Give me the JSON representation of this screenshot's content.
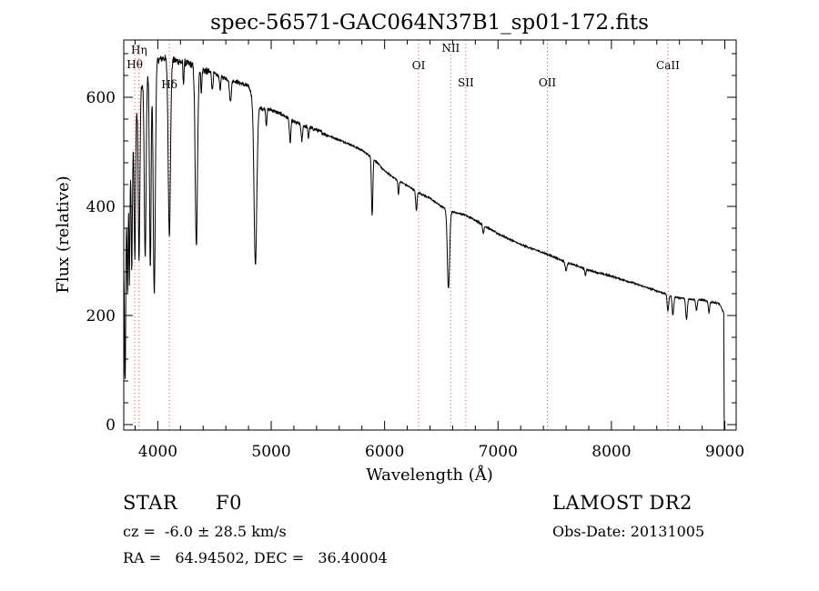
{
  "chart_data": {
    "type": "line",
    "title": "spec-56571-GAC064N37B1_sp01-172.fits",
    "xlabel": "Wavelength (Å)",
    "ylabel": "Flux (relative)",
    "xlim": [
      3700,
      9100
    ],
    "ylim": [
      -10,
      705
    ],
    "x_ticks": [
      4000,
      5000,
      6000,
      7000,
      8000,
      9000
    ],
    "y_ticks": [
      0,
      200,
      400,
      600
    ],
    "x_minor_step": 200,
    "y_minor_step": 40,
    "line_color": "#000000",
    "marker_color": "#e05050",
    "lines": [
      {
        "label": "Hη",
        "wavelength": 3835,
        "label_flux": 680
      },
      {
        "label": "Hθ",
        "wavelength": 3797,
        "label_flux": 653
      },
      {
        "label": "Hδ",
        "wavelength": 4102,
        "label_flux": 617
      },
      {
        "label": "OI",
        "wavelength": 6300,
        "label_flux": 652
      },
      {
        "label": "NII",
        "wavelength": 6583,
        "label_flux": 683
      },
      {
        "label": "SII",
        "wavelength": 6716,
        "label_flux": 620
      },
      {
        "label": "OII",
        "wavelength": 7435,
        "label_flux": 620
      },
      {
        "label": "CaII",
        "wavelength": 8498,
        "label_flux": 652
      }
    ],
    "continuum": [
      [
        3700,
        300
      ],
      [
        3750,
        460
      ],
      [
        3800,
        560
      ],
      [
        3850,
        620
      ],
      [
        3900,
        640
      ],
      [
        3950,
        655
      ],
      [
        4000,
        668
      ],
      [
        4050,
        672
      ],
      [
        4100,
        670
      ],
      [
        4200,
        665
      ],
      [
        4300,
        660
      ],
      [
        4400,
        650
      ],
      [
        4500,
        642
      ],
      [
        4600,
        635
      ],
      [
        4700,
        628
      ],
      [
        4800,
        620
      ],
      [
        4850,
        595
      ],
      [
        4900,
        580
      ],
      [
        5000,
        577
      ],
      [
        5100,
        568
      ],
      [
        5200,
        555
      ],
      [
        5300,
        547
      ],
      [
        5400,
        540
      ],
      [
        5500,
        530
      ],
      [
        5600,
        522
      ],
      [
        5700,
        513
      ],
      [
        5800,
        503
      ],
      [
        5900,
        488
      ],
      [
        6000,
        465
      ],
      [
        6100,
        450
      ],
      [
        6200,
        438
      ],
      [
        6300,
        425
      ],
      [
        6400,
        415
      ],
      [
        6500,
        400
      ],
      [
        6600,
        390
      ],
      [
        6700,
        385
      ],
      [
        6800,
        375
      ],
      [
        6900,
        362
      ],
      [
        7000,
        350
      ],
      [
        7200,
        330
      ],
      [
        7400,
        315
      ],
      [
        7600,
        298
      ],
      [
        7800,
        283
      ],
      [
        8000,
        272
      ],
      [
        8200,
        259
      ],
      [
        8400,
        245
      ],
      [
        8600,
        232
      ],
      [
        8800,
        228
      ],
      [
        8950,
        222
      ],
      [
        8990,
        205
      ]
    ],
    "absorptions": [
      {
        "wavelength": 3712,
        "depth": 260,
        "width": 5
      },
      {
        "wavelength": 3734,
        "depth": 170,
        "width": 4
      },
      {
        "wavelength": 3750,
        "depth": 200,
        "width": 4
      },
      {
        "wavelength": 3771,
        "depth": 220,
        "width": 5
      },
      {
        "wavelength": 3798,
        "depth": 250,
        "width": 6
      },
      {
        "wavelength": 3835,
        "depth": 300,
        "width": 7
      },
      {
        "wavelength": 3889,
        "depth": 330,
        "width": 8
      },
      {
        "wavelength": 3934,
        "depth": 370,
        "width": 7
      },
      {
        "wavelength": 3969,
        "depth": 420,
        "width": 9
      },
      {
        "wavelength": 4102,
        "depth": 320,
        "width": 10
      },
      {
        "wavelength": 4226,
        "depth": 40,
        "width": 4
      },
      {
        "wavelength": 4340,
        "depth": 330,
        "width": 10
      },
      {
        "wavelength": 4384,
        "depth": 40,
        "width": 5
      },
      {
        "wavelength": 4481,
        "depth": 30,
        "width": 5
      },
      {
        "wavelength": 4550,
        "depth": 25,
        "width": 5
      },
      {
        "wavelength": 4640,
        "depth": 40,
        "width": 8
      },
      {
        "wavelength": 4861,
        "depth": 300,
        "width": 12
      },
      {
        "wavelength": 4957,
        "depth": 30,
        "width": 5
      },
      {
        "wavelength": 5167,
        "depth": 45,
        "width": 6
      },
      {
        "wavelength": 5270,
        "depth": 30,
        "width": 6
      },
      {
        "wavelength": 5328,
        "depth": 20,
        "width": 5
      },
      {
        "wavelength": 5890,
        "depth": 105,
        "width": 6
      },
      {
        "wavelength": 6122,
        "depth": 25,
        "width": 5
      },
      {
        "wavelength": 6280,
        "depth": 35,
        "width": 6
      },
      {
        "wavelength": 6563,
        "depth": 145,
        "width": 10
      },
      {
        "wavelength": 6870,
        "depth": 15,
        "width": 6
      },
      {
        "wavelength": 7600,
        "depth": 15,
        "width": 8
      },
      {
        "wavelength": 7770,
        "depth": 12,
        "width": 5
      },
      {
        "wavelength": 8498,
        "depth": 30,
        "width": 7
      },
      {
        "wavelength": 8542,
        "depth": 35,
        "width": 7
      },
      {
        "wavelength": 8662,
        "depth": 38,
        "width": 7
      },
      {
        "wavelength": 8750,
        "depth": 20,
        "width": 6
      },
      {
        "wavelength": 8860,
        "depth": 20,
        "width": 6
      }
    ]
  },
  "info": {
    "object_class": "STAR",
    "subclass": "F0",
    "redshift": "cz =  -6.0 ± 28.5 km/s",
    "coordinates": "RA =   64.94502, DEC =   36.40004",
    "survey": "LAMOST DR2",
    "obs_date": "Obs-Date: 20131005"
  }
}
